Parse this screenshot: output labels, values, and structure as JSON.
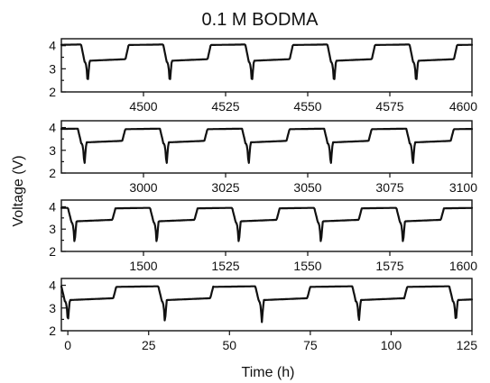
{
  "chart_data": {
    "type": "line",
    "title": "0.1 M BODMA",
    "ylabel": "Voltage (V)",
    "xlabel": "Time (h)",
    "line_color": "#111111",
    "panels": [
      {
        "ylim": [
          2,
          4.3
        ],
        "yticks": [
          "2",
          "3",
          "4"
        ],
        "xlim": [
          4475,
          4600
        ],
        "xticks": [
          "4500",
          "4525",
          "4550",
          "4575",
          "4600"
        ],
        "xtick_values": [
          4500,
          4525,
          4550,
          4575,
          4600
        ],
        "cycle_period_h": 25,
        "discharge_end_offsets_h": [
          4483,
          4508,
          4533,
          4558,
          4583
        ],
        "charge_plateau_V": 4.05,
        "discharge_plateau_V": 3.3,
        "min_voltage_V": 2.35
      },
      {
        "ylim": [
          2,
          4.3
        ],
        "yticks": [
          "2",
          "3",
          "4"
        ],
        "xlim": [
          2975,
          3100
        ],
        "xticks": [
          "3000",
          "3025",
          "3050",
          "3075",
          "3100"
        ],
        "xtick_values": [
          3000,
          3025,
          3050,
          3075,
          3100
        ],
        "cycle_period_h": 25,
        "discharge_end_offsets_h": [
          2982,
          3007,
          3032,
          3057,
          3082
        ],
        "charge_plateau_V": 3.95,
        "discharge_plateau_V": 3.3,
        "min_voltage_V": 2.3
      },
      {
        "ylim": [
          2,
          4.3
        ],
        "yticks": [
          "2",
          "3",
          "4"
        ],
        "xlim": [
          1475,
          1600
        ],
        "xticks": [
          "1500",
          "1525",
          "1550",
          "1575",
          "1600"
        ],
        "xtick_values": [
          1500,
          1525,
          1550,
          1575,
          1600
        ],
        "cycle_period_h": 25,
        "discharge_end_offsets_h": [
          1479,
          1504,
          1529,
          1554,
          1579
        ],
        "charge_plateau_V": 3.95,
        "discharge_plateau_V": 3.3,
        "min_voltage_V": 2.35
      },
      {
        "ylim": [
          2,
          4.3
        ],
        "yticks": [
          "2",
          "3",
          "4"
        ],
        "xlim": [
          -2,
          125
        ],
        "xticks": [
          "0",
          "25",
          "50",
          "75",
          "100",
          "125"
        ],
        "xtick_values": [
          0,
          25,
          50,
          75,
          100,
          125
        ],
        "cycle_period_h": 30,
        "discharge_end_offsets_h": [
          30,
          60,
          90,
          120
        ],
        "charge_plateau_V": 3.95,
        "discharge_plateau_V": 3.3,
        "min_voltage_V": 2.35
      }
    ]
  }
}
